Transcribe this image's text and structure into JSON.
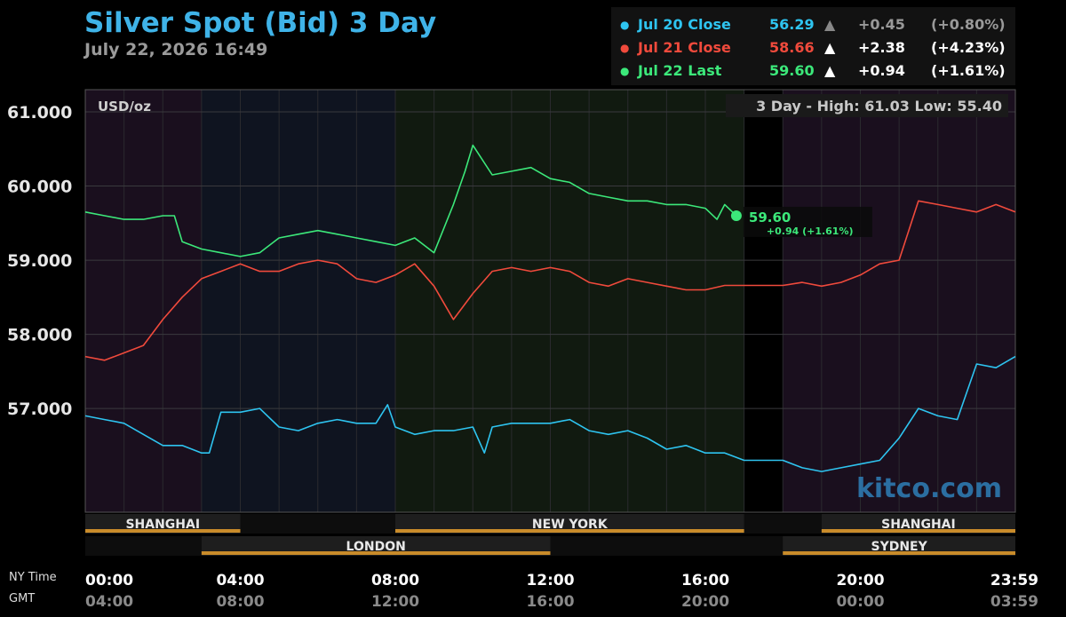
{
  "header": {
    "title": "Silver Spot (Bid) 3 Day",
    "timestamp": "July 22, 2026 16:49"
  },
  "legend": [
    {
      "label": "Jul 20 Close",
      "value": "56.29",
      "arrow": "▲",
      "change": "+0.45",
      "pct": "(+0.80%)",
      "color": "#2ec4f0",
      "muted": true
    },
    {
      "label": "Jul 21 Close",
      "value": "58.66",
      "arrow": "▲",
      "change": "+2.38",
      "pct": "(+4.23%)",
      "color": "#f04a3c",
      "muted": false
    },
    {
      "label": "Jul 22 Last",
      "value": "59.60",
      "arrow": "▲",
      "change": "+0.94",
      "pct": "(+1.61%)",
      "color": "#3ce87a",
      "muted": false
    }
  ],
  "axis_labels": {
    "unit": "USD/oz",
    "range_info": "3 Day - High: 61.03  Low: 55.40",
    "ny_time_label": "NY Time",
    "gmt_label": "GMT",
    "watermark": "kitco.com"
  },
  "last_marker": {
    "value": "59.60",
    "change": "+0.94 (+1.61%)"
  },
  "sessions": [
    {
      "name": "SHANGHAI",
      "start": 0,
      "end": 4
    },
    {
      "name": "NEW YORK",
      "start": 8,
      "end": 17
    },
    {
      "name": "SHANGHAI",
      "start": 19,
      "end": 24
    },
    {
      "name": "LONDON",
      "start": 3,
      "end": 12
    },
    {
      "name": "SYDNEY",
      "start": 18,
      "end": 24
    }
  ],
  "chart_data": {
    "type": "line",
    "title": "Silver Spot (Bid) 3 Day",
    "ylabel": "USD/oz",
    "ylim": [
      55.6,
      61.3
    ],
    "xlim": [
      0,
      24
    ],
    "y_ticks": [
      "61.000",
      "60.000",
      "59.000",
      "58.000",
      "57.000"
    ],
    "y_tick_values": [
      61,
      60,
      59,
      58,
      57
    ],
    "x_ticks_ny": [
      "00:00",
      "04:00",
      "08:00",
      "12:00",
      "16:00",
      "20:00",
      "23:59"
    ],
    "x_ticks_gmt": [
      "04:00",
      "08:00",
      "12:00",
      "16:00",
      "20:00",
      "00:00",
      "03:59"
    ],
    "x_tick_hours": [
      0,
      4,
      8,
      12,
      16,
      20,
      24
    ],
    "grid": true,
    "series": [
      {
        "name": "Jul 20 Close",
        "color": "#2ec4f0",
        "x": [
          0,
          0.5,
          1,
          1.5,
          2,
          2.5,
          3,
          3.2,
          3.5,
          4,
          4.5,
          5,
          5.5,
          6,
          6.5,
          7,
          7.5,
          7.8,
          8,
          8.5,
          9,
          9.5,
          10,
          10.3,
          10.5,
          11,
          11.5,
          12,
          12.5,
          13,
          13.5,
          14,
          14.5,
          15,
          15.5,
          16,
          16.5,
          17,
          17.5,
          18,
          18.5,
          19,
          19.5,
          20,
          20.5,
          21,
          21.5,
          22,
          22.5,
          23,
          23.5,
          24
        ],
        "y": [
          56.9,
          56.85,
          56.8,
          56.65,
          56.5,
          56.5,
          56.4,
          56.4,
          56.95,
          56.95,
          57.0,
          56.75,
          56.7,
          56.8,
          56.85,
          56.8,
          56.8,
          57.05,
          56.75,
          56.65,
          56.7,
          56.7,
          56.75,
          56.4,
          56.75,
          56.8,
          56.8,
          56.8,
          56.85,
          56.7,
          56.65,
          56.7,
          56.6,
          56.45,
          56.5,
          56.4,
          56.4,
          56.3,
          56.3,
          56.3,
          56.2,
          56.15,
          56.2,
          56.25,
          56.3,
          56.6,
          57.0,
          56.9,
          56.85,
          57.6,
          57.55,
          57.7
        ]
      },
      {
        "name": "Jul 21 Close",
        "color": "#f04a3c",
        "x": [
          0,
          0.5,
          1,
          1.5,
          2,
          2.5,
          3,
          3.5,
          4,
          4.5,
          5,
          5.5,
          6,
          6.5,
          7,
          7.5,
          8,
          8.5,
          9,
          9.5,
          10,
          10.5,
          11,
          11.5,
          12,
          12.5,
          13,
          13.5,
          14,
          14.5,
          15,
          15.5,
          16,
          16.5,
          17,
          17.5,
          18,
          18.5,
          19,
          19.5,
          20,
          20.5,
          21,
          21.5,
          22,
          22.5,
          23,
          23.5,
          24
        ],
        "y": [
          57.7,
          57.65,
          57.75,
          57.85,
          58.2,
          58.5,
          58.75,
          58.85,
          58.95,
          58.85,
          58.85,
          58.95,
          59.0,
          58.95,
          58.75,
          58.7,
          58.8,
          58.95,
          58.65,
          58.2,
          58.55,
          58.85,
          58.9,
          58.85,
          58.9,
          58.85,
          58.7,
          58.65,
          58.75,
          58.7,
          58.65,
          58.6,
          58.6,
          58.66,
          58.66,
          58.66,
          58.66,
          58.7,
          58.65,
          58.7,
          58.8,
          58.95,
          59.0,
          59.8,
          59.75,
          59.7,
          59.65,
          59.75,
          59.65
        ]
      },
      {
        "name": "Jul 22 Last",
        "color": "#3ce87a",
        "x": [
          0,
          0.5,
          1,
          1.5,
          2,
          2.3,
          2.5,
          3,
          3.5,
          4,
          4.5,
          5,
          5.5,
          6,
          6.5,
          7,
          7.5,
          8,
          8.5,
          9,
          9.5,
          9.8,
          10,
          10.5,
          11,
          11.5,
          12,
          12.5,
          13,
          13.5,
          14,
          14.5,
          15,
          15.5,
          16,
          16.3,
          16.5,
          16.8
        ],
        "y": [
          59.65,
          59.6,
          59.55,
          59.55,
          59.6,
          59.6,
          59.25,
          59.15,
          59.1,
          59.05,
          59.1,
          59.3,
          59.35,
          59.4,
          59.35,
          59.3,
          59.25,
          59.2,
          59.3,
          59.1,
          59.75,
          60.2,
          60.55,
          60.15,
          60.2,
          60.25,
          60.1,
          60.05,
          59.9,
          59.85,
          59.8,
          59.8,
          59.75,
          59.75,
          59.7,
          59.55,
          59.75,
          59.6
        ]
      }
    ]
  }
}
